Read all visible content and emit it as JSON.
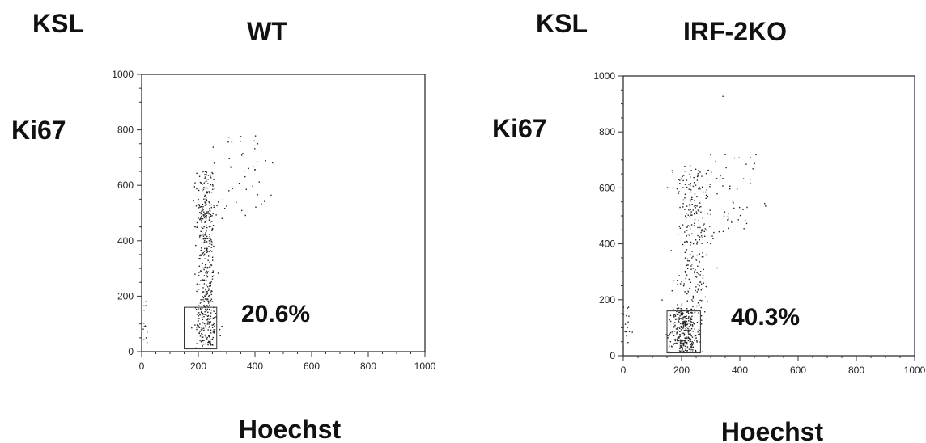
{
  "chart_data": [
    {
      "type": "scatter",
      "population_label": "KSL",
      "title": "WT",
      "xlabel": "Hoechst",
      "ylabel": "Ki67",
      "xlim": [
        0,
        1000
      ],
      "ylim": [
        0,
        1000
      ],
      "x_ticks": [
        0,
        200,
        400,
        600,
        800,
        1000
      ],
      "y_ticks": [
        0,
        200,
        400,
        600,
        800,
        1000
      ],
      "gate": {
        "x": [
          150,
          265
        ],
        "y": [
          10,
          160
        ],
        "percent_label": "20.6%"
      },
      "clusters": [
        {
          "x_mean": 228,
          "x_sd": 20,
          "y_min": 10,
          "y_max": 160,
          "count": 150
        },
        {
          "x_mean": 228,
          "x_sd": 16,
          "y_min": 160,
          "y_max": 650,
          "count": 330
        },
        {
          "x_mean": 360,
          "x_sd": 55,
          "y_min": 480,
          "y_max": 780,
          "count": 45
        },
        {
          "x_mean": 8,
          "x_sd": 8,
          "y_min": 30,
          "y_max": 185,
          "count": 18
        }
      ]
    },
    {
      "type": "scatter",
      "population_label": "KSL",
      "title": "IRF-2KO",
      "xlabel": "Hoechst",
      "ylabel": "Ki67",
      "xlim": [
        0,
        1000
      ],
      "ylim": [
        0,
        1000
      ],
      "x_ticks": [
        0,
        200,
        400,
        600,
        800,
        1000
      ],
      "y_ticks": [
        0,
        200,
        400,
        600,
        800,
        1000
      ],
      "gate": {
        "x": [
          150,
          265
        ],
        "y": [
          10,
          160
        ],
        "percent_label": "40.3%"
      },
      "clusters": [
        {
          "x_mean": 210,
          "x_sd": 25,
          "y_min": 10,
          "y_max": 170,
          "count": 320
        },
        {
          "x_mean": 240,
          "x_sd": 32,
          "y_min": 170,
          "y_max": 680,
          "count": 260
        },
        {
          "x_mean": 370,
          "x_sd": 50,
          "y_min": 430,
          "y_max": 720,
          "count": 55
        },
        {
          "x_mean": 340,
          "x_sd": 5,
          "y_min": 925,
          "y_max": 935,
          "count": 1
        },
        {
          "x_mean": 10,
          "x_sd": 10,
          "y_min": 20,
          "y_max": 185,
          "count": 18
        }
      ]
    }
  ]
}
